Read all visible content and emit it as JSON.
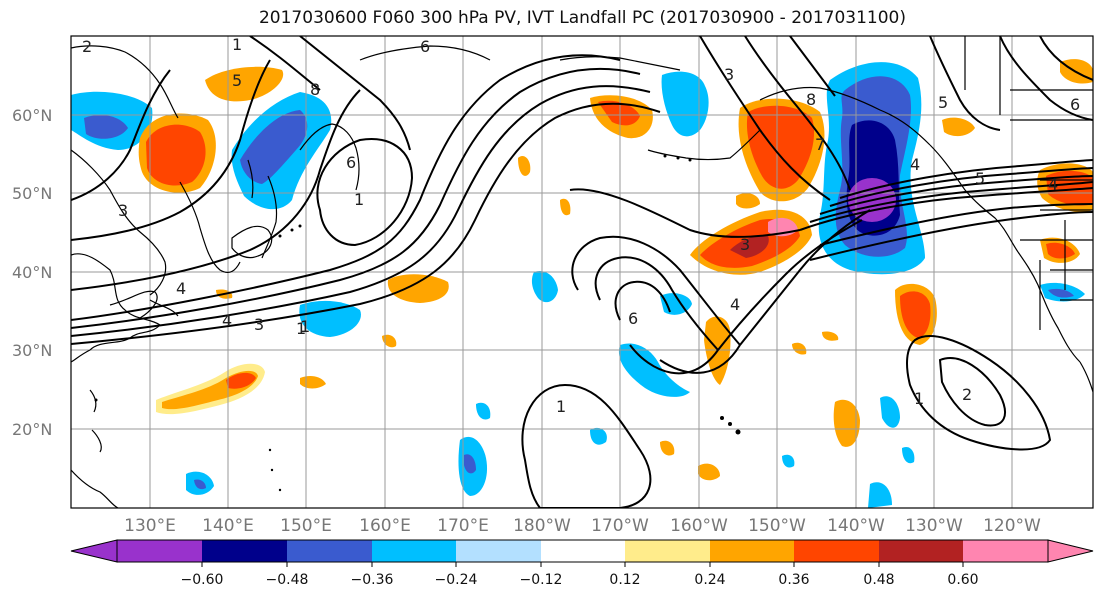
{
  "title": "2017030600 F060 300 hPa PV, IVT Landfall PC (2017030900 - 2017031100)",
  "lat_labels": [
    "60°N",
    "50°N",
    "40°N",
    "30°N",
    "20°N"
  ],
  "lon_labels": [
    "130°E",
    "140°E",
    "150°E",
    "160°E",
    "170°E",
    "180°W",
    "170°W",
    "160°W",
    "150°W",
    "140°W",
    "130°W",
    "120°W"
  ],
  "colorbar": {
    "ticks": [
      "−0.60",
      "−0.48",
      "−0.36",
      "−0.24",
      "−0.12",
      "0.12",
      "0.24",
      "0.36",
      "0.48",
      "0.60"
    ],
    "colors": [
      "#9932cc",
      "#00008b",
      "#3a5bcf",
      "#00bfff",
      "#b3e0ff",
      "#ffffff",
      "#ffec8b",
      "#ffa500",
      "#ff4500",
      "#b22222",
      "#ff85b0"
    ]
  },
  "contour_labels": [
    "2",
    "1",
    "6",
    "8",
    "5",
    "6",
    "1",
    "4",
    "3",
    "1",
    "3",
    "4",
    "6",
    "1",
    "8",
    "7",
    "3",
    "4",
    "5",
    "6",
    "4",
    "5",
    "3",
    "4",
    "1",
    "2",
    "1"
  ]
}
